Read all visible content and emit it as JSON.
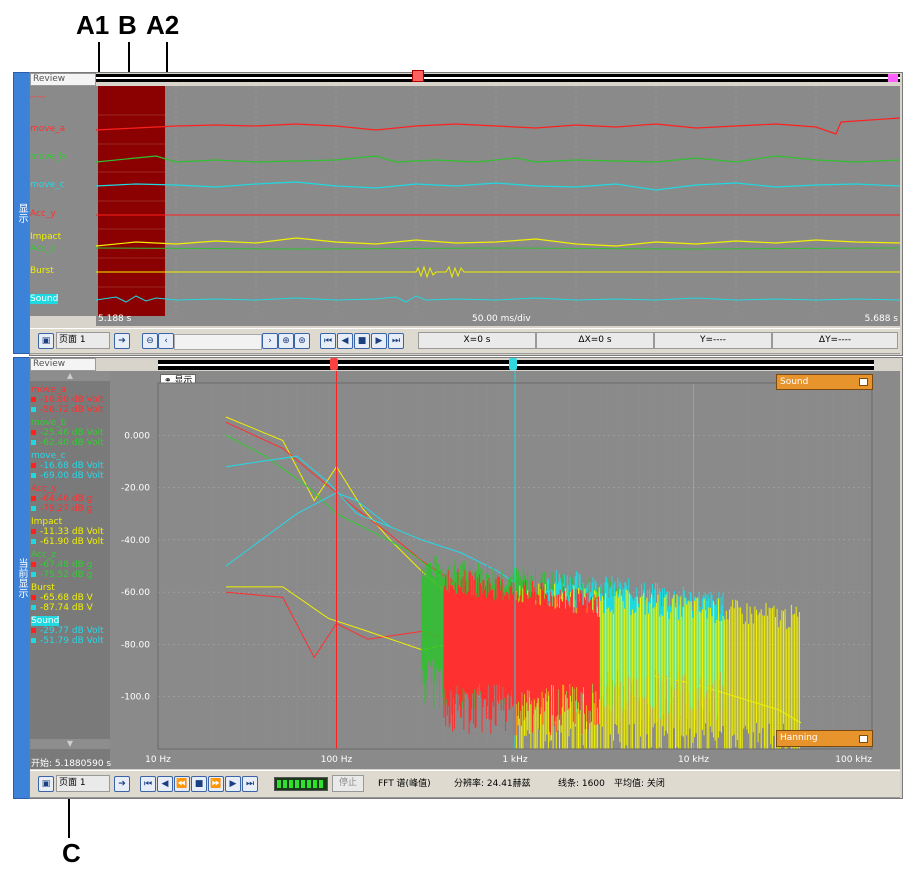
{
  "callouts": {
    "a1": "A1",
    "b": "B",
    "a2": "A2",
    "c": "C"
  },
  "colors": {
    "red": "#ff2020",
    "green": "#30c030",
    "cyan": "#20d8e0",
    "yellow": "#f0f000",
    "panel": "#8a8a8a"
  },
  "top_panel": {
    "tab_label": "显示",
    "review": "Review",
    "channels": [
      {
        "name": "-----",
        "color": "#ff4040"
      },
      {
        "name": "move_a",
        "color": "#ff3030"
      },
      {
        "name": "move_b",
        "color": "#33cc33"
      },
      {
        "name": "move_c",
        "color": "#25d8e8"
      },
      {
        "name": "Acc_y",
        "color": "#ff3030"
      },
      {
        "name": "Impact",
        "color": "#f0f000"
      },
      {
        "name": "Acc_z",
        "color": "#33cc33"
      },
      {
        "name": "Burst",
        "color": "#f0f000"
      },
      {
        "name": "Sound",
        "color": "#25d8e8"
      }
    ],
    "time_start": "5.188 s",
    "time_div": "50.00 ms/div",
    "time_end": "5.688 s",
    "toolbar": {
      "page_label": "页面 1",
      "x_readout": "X=0 s",
      "dx_readout": "ΔX=0 s",
      "y_readout": "Y=----",
      "dy_readout": "ΔY=----"
    }
  },
  "bottom_panel": {
    "tab_label": "当前显示",
    "review": "Review",
    "display_tag": "显示",
    "legend": [
      {
        "name": "move_a",
        "v1": "-16.80 dB Volt",
        "v2": "-56.72 dB Volt",
        "color": "#ff3030"
      },
      {
        "name": "move_b",
        "v1": "-25.46 dB Volt",
        "v2": "-62.40 dB Volt",
        "color": "#33cc33"
      },
      {
        "name": "move_c",
        "v1": "-16.68 dB Volt",
        "v2": "-69.00 dB Volt",
        "color": "#25d8e8"
      },
      {
        "name": "Acc_y",
        "v1": "-64.46 dB g",
        "v2": "-79.27 dB g",
        "color": "#ff3030"
      },
      {
        "name": "Impact",
        "v1": "-11.33 dB Volt",
        "v2": "-61.90 dB Volt",
        "color": "#f0f000"
      },
      {
        "name": "Acc_z",
        "v1": "-67.48 dB g",
        "v2": "-75.52 dB g",
        "color": "#33cc33"
      },
      {
        "name": "Burst",
        "v1": "-65.68 dB V",
        "v2": "-87.74 dB V",
        "color": "#f0f000"
      },
      {
        "name": "Sound",
        "v1": "-29.77 dB Volt",
        "v2": "-51.79 dB Volt",
        "color": "#25d8e8"
      }
    ],
    "start_label": "开始: 5.1880590 s",
    "sound_box": "Sound",
    "hanning_box": "Hanning",
    "toolbar": {
      "page_label": "页面 1",
      "stop_label": "停止",
      "fft_label": "FFT 谱(峰值)",
      "resolution": "分辨率: 24.41赫兹",
      "lines": "线条: 1600",
      "average": "平均值: 关闭"
    }
  },
  "chart_data": {
    "type": "line",
    "title": "",
    "xlabel": "",
    "ylabel": "",
    "x_scale": "log",
    "xlim": [
      10,
      100000
    ],
    "ylim": [
      -120,
      20
    ],
    "y_ticks": [
      {
        "value": 0,
        "label": "0.000"
      },
      {
        "value": -20,
        "label": "-20.00"
      },
      {
        "value": -40,
        "label": "-40.00"
      },
      {
        "value": -60,
        "label": "-60.00"
      },
      {
        "value": -80,
        "label": "-80.00"
      },
      {
        "value": -100,
        "label": "-100.0"
      }
    ],
    "x_ticks": [
      {
        "value": 10,
        "label": "10 Hz"
      },
      {
        "value": 100,
        "label": "100 Hz"
      },
      {
        "value": 1000,
        "label": "1 kHz"
      },
      {
        "value": 10000,
        "label": "10 kHz"
      },
      {
        "value": 100000,
        "label": "100 kHz"
      }
    ],
    "cursors": [
      {
        "x": 100,
        "color": "#ff2020"
      },
      {
        "x": 1000,
        "color": "#20d8e0"
      }
    ],
    "series": [
      {
        "color": "#f0f000",
        "x": [
          24,
          50,
          75,
          100,
          140,
          200,
          300,
          500,
          800,
          1200
        ],
        "values": [
          7,
          -2,
          -25,
          -12,
          -28,
          -40,
          -52,
          -65,
          -75,
          -85
        ]
      },
      {
        "color": "#ff3030",
        "x": [
          24,
          50,
          75,
          100,
          140,
          200,
          300,
          500,
          800,
          1200
        ],
        "values": [
          5,
          -5,
          -15,
          -22,
          -30,
          -38,
          -48,
          -58,
          -70,
          -80
        ]
      },
      {
        "color": "#33cc33",
        "x": [
          24,
          40,
          70,
          100,
          150,
          250,
          400,
          600,
          900
        ],
        "values": [
          0,
          -8,
          -20,
          -30,
          -36,
          -44,
          -55,
          -65,
          -75
        ]
      },
      {
        "color": "#25d8e8",
        "x": [
          24,
          60,
          90,
          130,
          200,
          300,
          500,
          800,
          1200,
          2000
        ],
        "values": [
          -12,
          -8,
          -18,
          -30,
          -35,
          -40,
          -45,
          -52,
          -60,
          -65
        ]
      },
      {
        "color": "#ff3030",
        "x": [
          24,
          50,
          75,
          100,
          150,
          300,
          500,
          1000,
          2000
        ],
        "values": [
          -60,
          -62,
          -85,
          -72,
          -78,
          -75,
          -80,
          -85,
          -90
        ]
      },
      {
        "color": "#f0f000",
        "x": [
          24,
          50,
          90,
          150,
          300,
          600,
          1200,
          3000,
          10000,
          30000,
          40000
        ],
        "values": [
          -58,
          -58,
          -70,
          -75,
          -82,
          -78,
          -85,
          -88,
          -95,
          -105,
          -110
        ]
      },
      {
        "color": "#25d8e8",
        "x": [
          24,
          60,
          100,
          130,
          200
        ],
        "values": [
          -50,
          -30,
          -22,
          -25,
          -35
        ]
      }
    ]
  }
}
